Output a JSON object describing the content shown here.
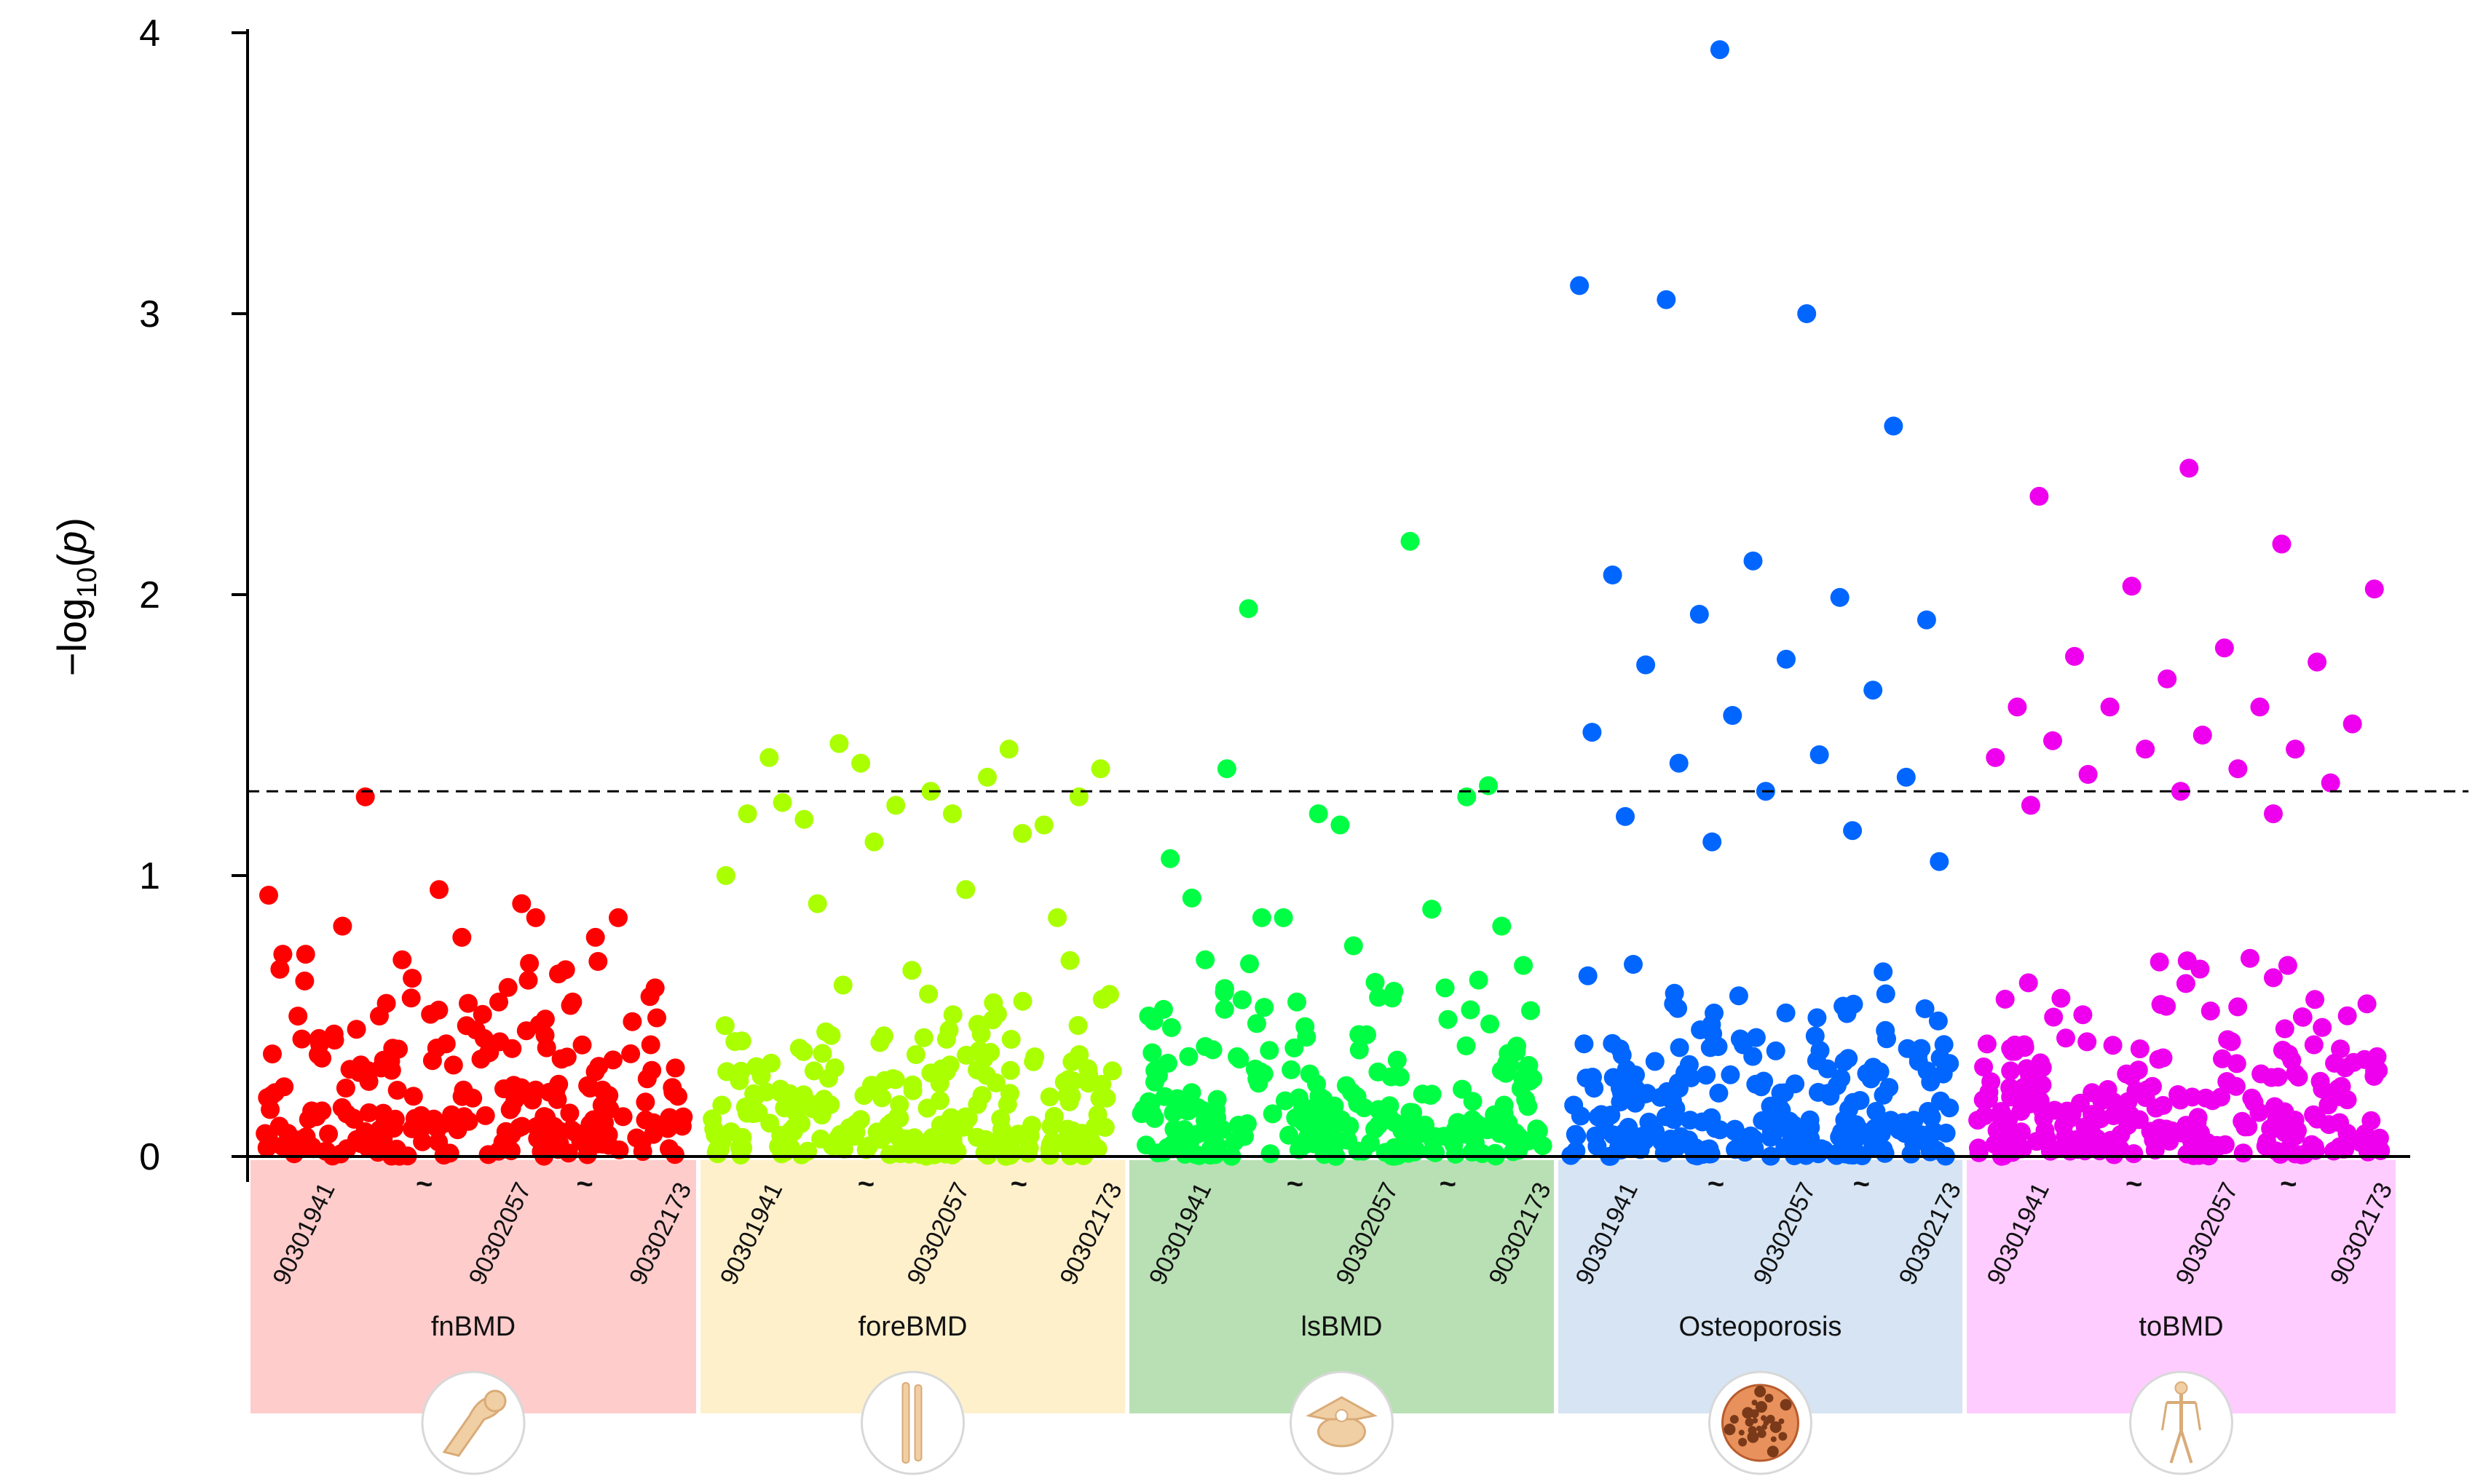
{
  "chart_data": {
    "type": "scatter",
    "title": "",
    "xlabel": "",
    "ylabel": {
      "prefix": "−log",
      "sub": "10",
      "open": "(",
      "var": "p",
      "close": ")"
    },
    "ylim": [
      0,
      4
    ],
    "yticks": [
      "0",
      "1",
      "2",
      "3",
      "4"
    ],
    "threshold": 1.3,
    "grid": false,
    "legend": "none",
    "colors": {
      "axis": "#000000"
    },
    "groups": [
      {
        "name": "fnBMD",
        "color": "#ff0000",
        "band_color": "#ffcccc",
        "icon": "femur-icon",
        "positions": [
          "90301941",
          "~",
          "90302057",
          "~",
          "90302173"
        ],
        "peaks": [
          0.93,
          0.9,
          1.28,
          0.85,
          0.78,
          0.72,
          0.65,
          0.7,
          0.6,
          0.55,
          0.82,
          0.78,
          0.95,
          0.72,
          0.85,
          0.5,
          0.48,
          0.45,
          0.4,
          0.55
        ]
      },
      {
        "name": "foreBMD",
        "color": "#aaff00",
        "band_color": "#fff0cc",
        "icon": "forearm-bone-icon",
        "positions": [
          "90301941",
          "~",
          "90302057",
          "~",
          "90302173"
        ],
        "peaks": [
          1.42,
          1.45,
          1.4,
          1.38,
          1.22,
          1.2,
          1.18,
          1.25,
          1.22,
          1.35,
          1.47,
          1.28,
          1.3,
          1.26,
          1.15,
          1.12,
          1.0,
          0.95,
          0.9,
          0.85
        ]
      },
      {
        "name": "lsBMD",
        "color": "#00ff44",
        "band_color": "#b9e0b4",
        "icon": "vertebra-icon",
        "positions": [
          "90301941",
          "~",
          "90302057",
          "~",
          "90302173"
        ],
        "peaks": [
          1.95,
          1.32,
          1.18,
          0.92,
          0.88,
          0.85,
          0.68,
          0.62,
          1.38,
          1.28,
          1.22,
          1.06,
          2.19,
          0.85,
          0.82,
          0.75,
          0.7,
          0.6,
          0.55,
          0.5
        ]
      },
      {
        "name": "Osteoporosis",
        "color": "#0066ff",
        "band_color": "#d6e4f3",
        "icon": "bone-tissue-icon",
        "positions": [
          "90301941",
          "~",
          "90302057",
          "~",
          "90302173"
        ],
        "peaks": [
          3.94,
          3.1,
          3.0,
          3.05,
          2.6,
          2.12,
          2.07,
          1.99,
          1.93,
          1.91,
          1.77,
          1.75,
          1.66,
          1.57,
          1.51,
          1.43,
          1.4,
          1.35,
          1.3,
          1.21,
          1.16,
          1.12,
          1.05
        ]
      },
      {
        "name": "toBMD",
        "color": "#ee00ee",
        "band_color": "#ffccff",
        "icon": "skeleton-icon",
        "positions": [
          "90301941",
          "~",
          "90302057",
          "~",
          "90302173"
        ],
        "peaks": [
          2.45,
          2.35,
          2.18,
          2.03,
          2.02,
          1.81,
          1.78,
          1.76,
          1.7,
          1.6,
          1.6,
          1.6,
          1.54,
          1.5,
          1.48,
          1.45,
          1.45,
          1.42,
          1.38,
          1.36,
          1.33,
          1.3,
          1.25,
          1.22
        ]
      }
    ]
  }
}
